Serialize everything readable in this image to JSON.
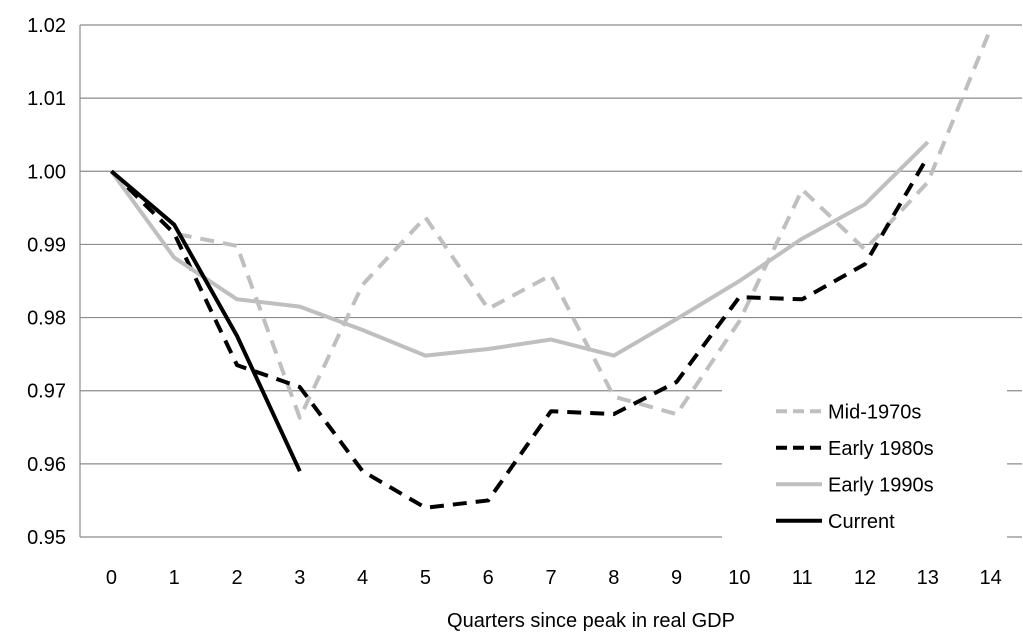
{
  "chart_data": {
    "type": "line",
    "title": "",
    "xlabel": "Quarters since peak in real GDP",
    "ylabel": "",
    "x": [
      0,
      1,
      2,
      3,
      4,
      5,
      6,
      7,
      8,
      9,
      10,
      11,
      12,
      13,
      14
    ],
    "x_tick_labels": [
      "0",
      "1",
      "2",
      "3",
      "4",
      "5",
      "6",
      "7",
      "8",
      "9",
      "10",
      "11",
      "12",
      "13",
      "14"
    ],
    "y_tick_labels": [
      "0.95",
      "0.96",
      "0.97",
      "0.98",
      "0.99",
      "1.00",
      "1.01",
      "1.02"
    ],
    "ylim": [
      0.95,
      1.02
    ],
    "grid": "horizontal",
    "legend_position": "bottom-right",
    "series": [
      {
        "name": "Mid-1970s",
        "color": "#bfbfbf",
        "dash": "dashed",
        "x": [
          0,
          1,
          2,
          3,
          4,
          5,
          6,
          7,
          8,
          9,
          10,
          11,
          12,
          13,
          14
        ],
        "values": [
          1.0,
          0.9915,
          0.9898,
          0.9663,
          0.9845,
          0.9937,
          0.9812,
          0.9858,
          0.9692,
          0.9668,
          0.9795,
          0.9975,
          0.9893,
          0.9985,
          1.0195
        ]
      },
      {
        "name": "Early 1980s",
        "color": "#000000",
        "dash": "dashed",
        "x": [
          0,
          1,
          2,
          3,
          4,
          5,
          6,
          7,
          8,
          9,
          10,
          11,
          12,
          13
        ],
        "values": [
          1.0,
          0.9915,
          0.9735,
          0.9705,
          0.959,
          0.954,
          0.955,
          0.9672,
          0.9668,
          0.9712,
          0.9828,
          0.9825,
          0.9873,
          1.002
        ]
      },
      {
        "name": "Early 1990s",
        "color": "#bfbfbf",
        "dash": "solid",
        "x": [
          0,
          1,
          2,
          3,
          4,
          5,
          6,
          7,
          8,
          9,
          10,
          11,
          12,
          13
        ],
        "values": [
          1.0,
          0.9882,
          0.9825,
          0.9815,
          0.9783,
          0.9748,
          0.9757,
          0.977,
          0.9748,
          0.9798,
          0.985,
          0.9908,
          0.9955,
          1.004
        ]
      },
      {
        "name": "Current",
        "color": "#000000",
        "dash": "solid",
        "x": [
          0,
          1,
          2,
          3
        ],
        "values": [
          1.0,
          0.9927,
          0.9775,
          0.959
        ]
      }
    ]
  }
}
